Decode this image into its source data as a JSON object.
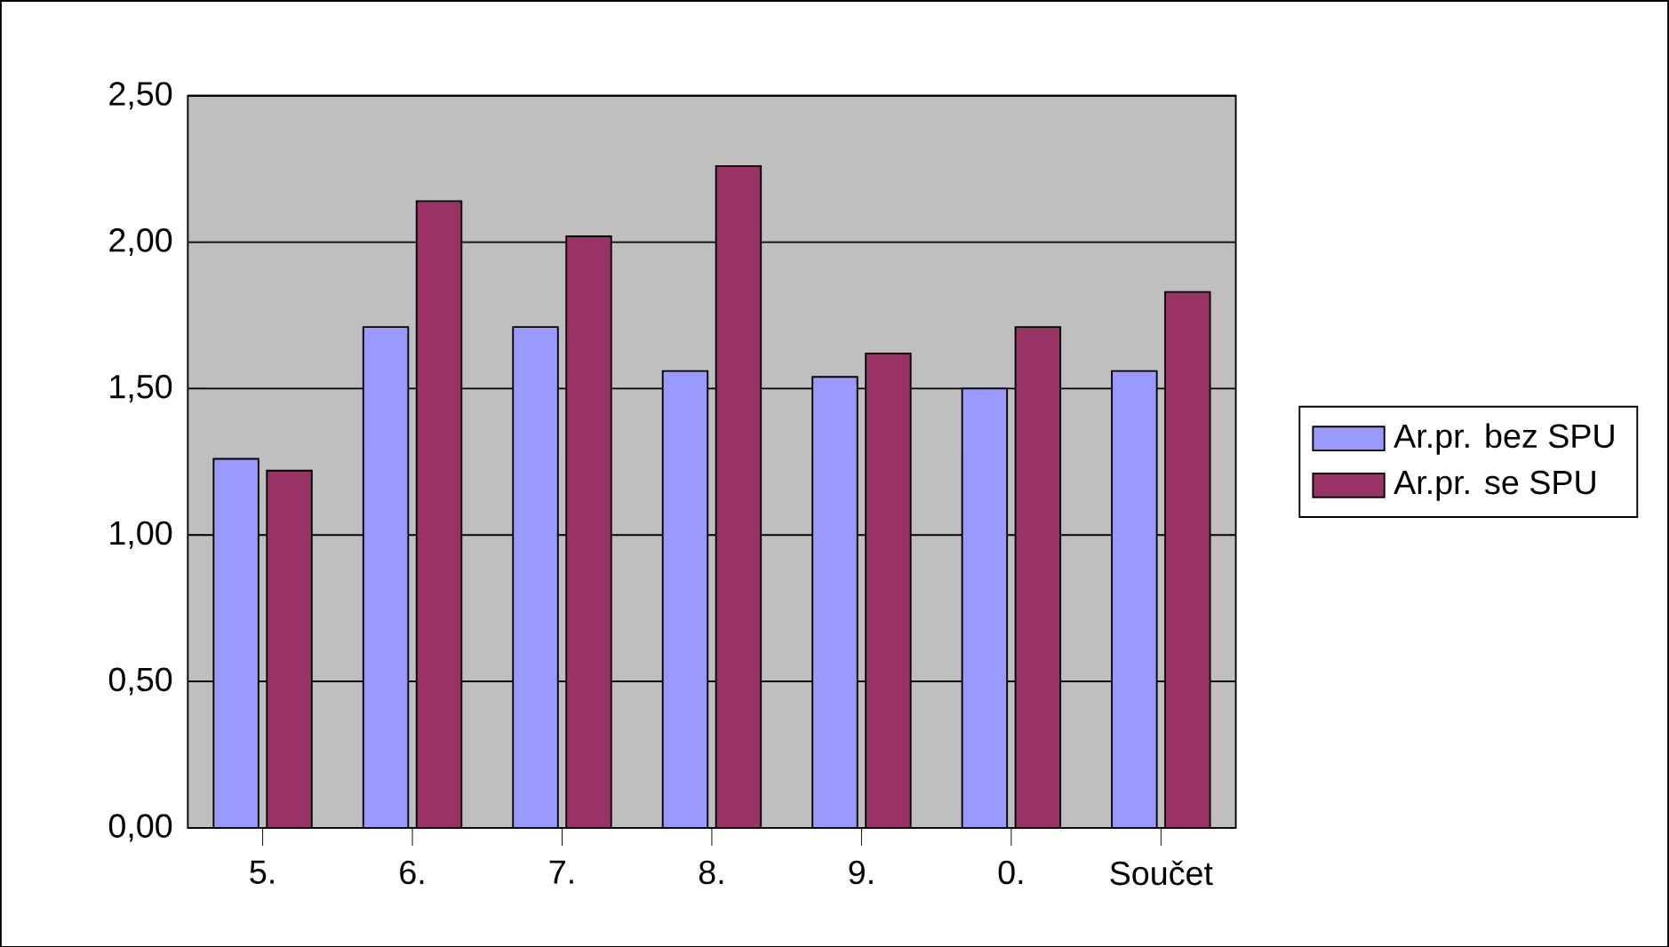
{
  "chart_data": {
    "type": "bar",
    "categories": [
      "5.",
      "6.",
      "7.",
      "8.",
      "9.",
      "0.",
      "Součet"
    ],
    "series": [
      {
        "name": "Ar.pr. bez SPU",
        "color": "#9999ff",
        "values": [
          1.26,
          1.71,
          1.71,
          1.56,
          1.54,
          1.5,
          1.56
        ]
      },
      {
        "name": "Ar.pr. se SPU",
        "color": "#993366",
        "values": [
          1.22,
          2.14,
          2.02,
          2.26,
          1.62,
          1.71,
          1.83
        ]
      }
    ],
    "ylim": [
      0,
      2.5
    ],
    "yticks": [
      {
        "value": 0,
        "label": "0,00"
      },
      {
        "value": 0.5,
        "label": "0,50"
      },
      {
        "value": 1,
        "label": "1,00"
      },
      {
        "value": 1.5,
        "label": "1,50"
      },
      {
        "value": 2,
        "label": "2,00"
      },
      {
        "value": 2.5,
        "label": "2,50"
      }
    ],
    "grid": "y",
    "legend": "right"
  }
}
